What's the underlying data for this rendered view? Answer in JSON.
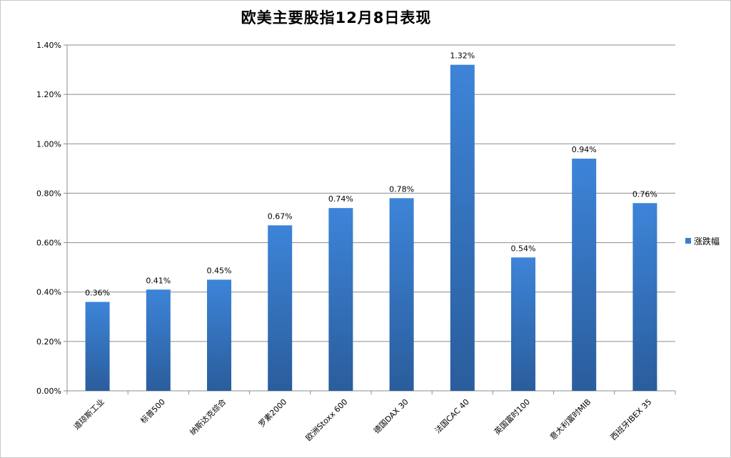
{
  "chart_data": {
    "type": "bar",
    "title": "欧美主要股指12月8日表现",
    "categories": [
      "道琼斯工业",
      "标普500",
      "纳斯达克综合",
      "罗素2000",
      "欧洲Stoxx 600",
      "德国DAX 30",
      "法国CAC 40",
      "英国富时100",
      "意大利富时MIB",
      "西班牙IBEX 35"
    ],
    "series": [
      {
        "name": "涨跌幅",
        "values": [
          0.36,
          0.41,
          0.45,
          0.67,
          0.74,
          0.78,
          1.32,
          0.54,
          0.94,
          0.76
        ],
        "labels": [
          "0.36%",
          "0.41%",
          "0.45%",
          "0.67%",
          "0.74%",
          "0.78%",
          "1.32%",
          "0.54%",
          "0.94%",
          "0.76%"
        ],
        "color": "#3a7fd0"
      }
    ],
    "ylim": [
      0,
      1.4
    ],
    "yticks": [
      0,
      0.2,
      0.4,
      0.6,
      0.8,
      1.0,
      1.2,
      1.4
    ],
    "ytick_labels": [
      "0.00%",
      "0.20%",
      "0.40%",
      "0.60%",
      "0.80%",
      "1.00%",
      "1.20%",
      "1.40%"
    ],
    "grid": true,
    "legend_position": "right"
  }
}
